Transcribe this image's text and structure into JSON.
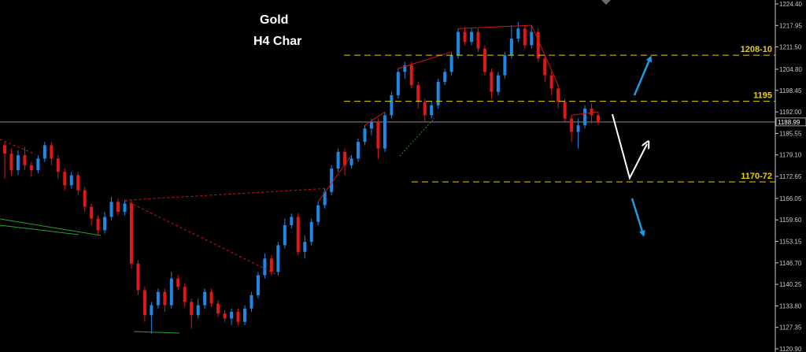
{
  "chart_data": {
    "type": "candlestick",
    "instrument": "Gold",
    "timeframe": "H4 Char",
    "y_ticks": [
      "1224.40",
      "1217.95",
      "1211.50",
      "1204.80",
      "1198.45",
      "1192.00",
      "1185.55",
      "1179.10",
      "1172.65",
      "1166.05",
      "1159.60",
      "1153.15",
      "1146.70",
      "1140.25",
      "1133.80",
      "1127.35",
      "1120.90"
    ],
    "ylim": [
      1120.9,
      1224.4
    ],
    "current_price": "1188.99",
    "levels": [
      {
        "label": "1208-10",
        "value": 1209.0
      },
      {
        "label": "1195",
        "value": 1195.2
      },
      {
        "label": "1170-72",
        "value": 1171.0
      }
    ],
    "up_color": "#1e88e5",
    "down_color": "#e01818",
    "level_color": "#e8d000",
    "arrow_color": "#1e9be0",
    "candles": [
      [
        1182,
        1179.5,
        1183,
        1172
      ],
      [
        1179.5,
        1174.5,
        1181,
        1173
      ],
      [
        1174.5,
        1179,
        1180.5,
        1173
      ],
      [
        1179,
        1176,
        1181.5,
        1174.5
      ],
      [
        1176,
        1174.5,
        1177,
        1172.5
      ],
      [
        1174.5,
        1178,
        1179,
        1173.5
      ],
      [
        1178,
        1182,
        1183,
        1177
      ],
      [
        1182,
        1178,
        1183,
        1176
      ],
      [
        1178,
        1174,
        1179,
        1172
      ],
      [
        1174,
        1170,
        1175,
        1168.5
      ],
      [
        1170,
        1173,
        1174,
        1169
      ],
      [
        1173,
        1168.5,
        1174,
        1167
      ],
      [
        1168.5,
        1163.5,
        1169.5,
        1162
      ],
      [
        1163.5,
        1160,
        1164.5,
        1158
      ],
      [
        1160,
        1156.5,
        1161,
        1155
      ],
      [
        1156.5,
        1160.5,
        1162,
        1155.5
      ],
      [
        1160.5,
        1165,
        1166.5,
        1159.5
      ],
      [
        1165,
        1162,
        1166,
        1161
      ],
      [
        1162,
        1164.5,
        1165.5,
        1161
      ],
      [
        1164.5,
        1146.5,
        1165.5,
        1145
      ],
      [
        1146.5,
        1138.5,
        1147.5,
        1137
      ],
      [
        1138.5,
        1131,
        1139.5,
        1129
      ],
      [
        1131,
        1134,
        1135,
        1125.5
      ],
      [
        1134,
        1138,
        1139,
        1133
      ],
      [
        1138,
        1134,
        1139,
        1132
      ],
      [
        1134,
        1142,
        1144,
        1133
      ],
      [
        1142,
        1139.5,
        1143,
        1138.5
      ],
      [
        1139.5,
        1135,
        1140.5,
        1133.5
      ],
      [
        1135,
        1131,
        1136,
        1127
      ],
      [
        1131,
        1134,
        1136,
        1130
      ],
      [
        1134,
        1138,
        1139,
        1133
      ],
      [
        1138,
        1134.5,
        1139,
        1133.5
      ],
      [
        1134.5,
        1131.5,
        1135.5,
        1130.5
      ],
      [
        1131.5,
        1130,
        1132.5,
        1129
      ],
      [
        1130,
        1132,
        1133,
        1128
      ],
      [
        1132,
        1129,
        1133,
        1128
      ],
      [
        1129,
        1133,
        1134,
        1128
      ],
      [
        1133,
        1137,
        1138,
        1132
      ],
      [
        1137,
        1143,
        1144,
        1136
      ],
      [
        1143,
        1148,
        1149.5,
        1142
      ],
      [
        1148,
        1144,
        1149,
        1143
      ],
      [
        1144,
        1152,
        1153,
        1143
      ],
      [
        1152,
        1158,
        1160,
        1151
      ],
      [
        1158,
        1160.5,
        1161.5,
        1157
      ],
      [
        1160.5,
        1150,
        1161.5,
        1149
      ],
      [
        1150,
        1153,
        1155,
        1148
      ],
      [
        1153,
        1159,
        1160,
        1152
      ],
      [
        1159,
        1164,
        1165,
        1158
      ],
      [
        1164,
        1168,
        1169,
        1163
      ],
      [
        1168,
        1175,
        1176,
        1167
      ],
      [
        1175,
        1180,
        1181,
        1174
      ],
      [
        1180,
        1176,
        1181,
        1173
      ],
      [
        1176,
        1178,
        1179,
        1175
      ],
      [
        1178,
        1183,
        1184,
        1177
      ],
      [
        1183,
        1187,
        1188,
        1182
      ],
      [
        1187,
        1189,
        1190,
        1185
      ],
      [
        1189,
        1181,
        1190,
        1178
      ],
      [
        1181,
        1191,
        1192,
        1180
      ],
      [
        1191,
        1197,
        1198,
        1190
      ],
      [
        1197,
        1204,
        1205,
        1196
      ],
      [
        1204,
        1206,
        1207,
        1202
      ],
      [
        1206,
        1200,
        1207,
        1199
      ],
      [
        1200,
        1195,
        1201,
        1193
      ],
      [
        1195,
        1191,
        1196,
        1189
      ],
      [
        1191,
        1194,
        1195,
        1190
      ],
      [
        1194,
        1201,
        1202,
        1193
      ],
      [
        1201,
        1204,
        1205,
        1200
      ],
      [
        1204,
        1209,
        1210,
        1203
      ],
      [
        1209,
        1216,
        1217,
        1208
      ],
      [
        1216,
        1213,
        1217.5,
        1212
      ],
      [
        1213,
        1216,
        1217,
        1212
      ],
      [
        1216,
        1211,
        1217,
        1210
      ],
      [
        1211,
        1204,
        1212,
        1203
      ],
      [
        1204,
        1198,
        1205,
        1196
      ],
      [
        1198,
        1203,
        1204,
        1197
      ],
      [
        1203,
        1209,
        1210,
        1202
      ],
      [
        1209,
        1214,
        1218,
        1208
      ],
      [
        1214,
        1217,
        1219,
        1213
      ],
      [
        1217,
        1212,
        1218,
        1211
      ],
      [
        1212,
        1216,
        1218,
        1211
      ],
      [
        1216,
        1208,
        1217,
        1207
      ],
      [
        1208,
        1203,
        1209,
        1201
      ],
      [
        1203,
        1199,
        1204,
        1197
      ],
      [
        1199,
        1195,
        1200,
        1193
      ],
      [
        1195,
        1190,
        1196,
        1189
      ],
      [
        1190,
        1186,
        1191,
        1183
      ],
      [
        1186,
        1188,
        1190,
        1181
      ],
      [
        1188,
        1193,
        1194,
        1187
      ],
      [
        1193,
        1191,
        1194.5,
        1188.5
      ],
      [
        1191,
        1189,
        1192,
        1188
      ]
    ]
  }
}
